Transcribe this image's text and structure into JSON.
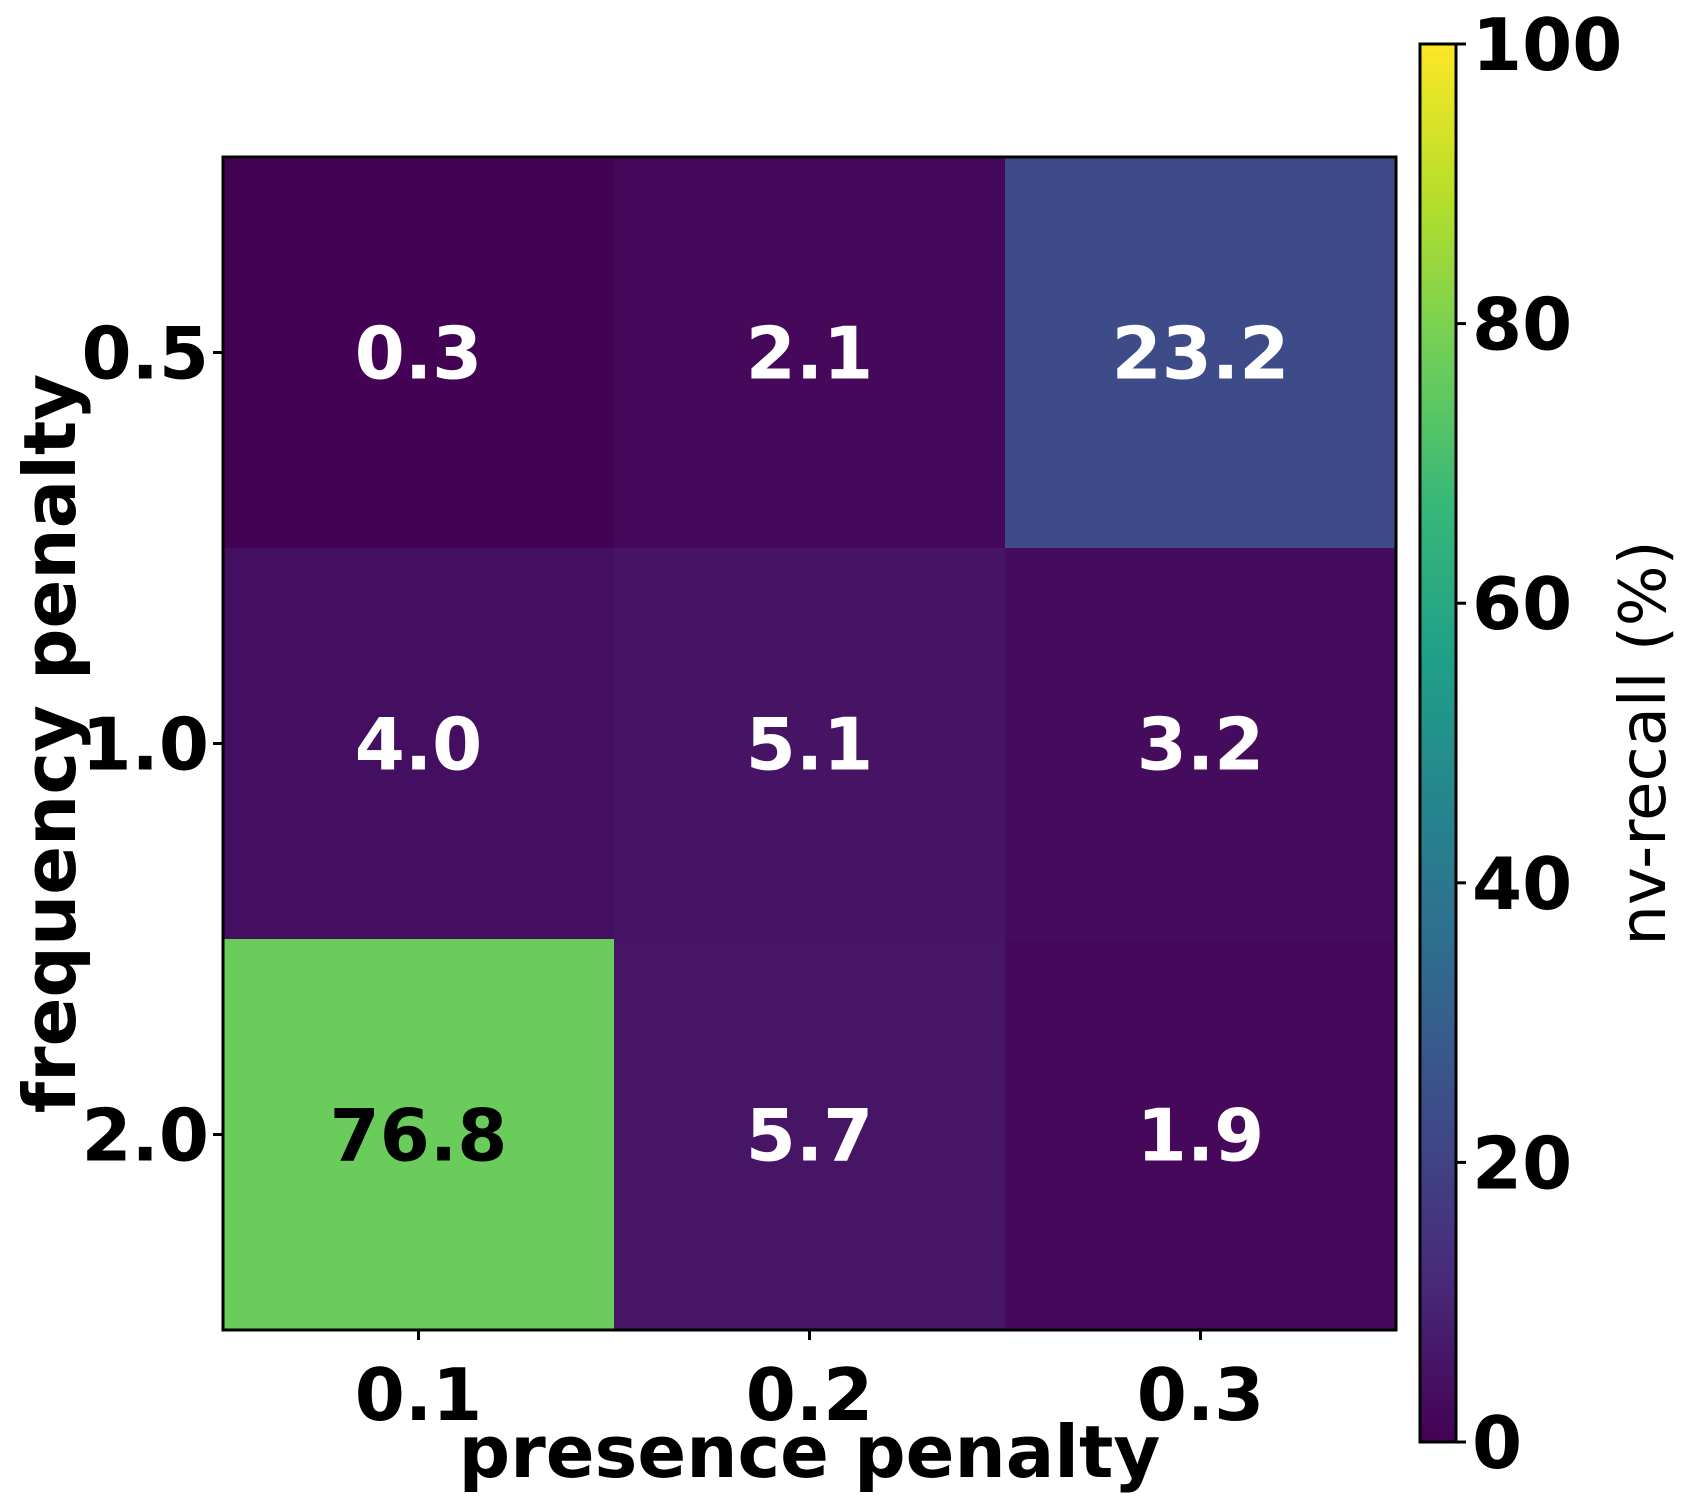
{
  "chart_data": {
    "type": "heatmap",
    "x_categories": [
      "0.1",
      "0.2",
      "0.3"
    ],
    "y_categories": [
      "0.5",
      "1.0",
      "2.0"
    ],
    "values": [
      [
        0.3,
        2.1,
        23.2
      ],
      [
        4.0,
        5.1,
        3.2
      ],
      [
        76.8,
        5.7,
        1.9
      ]
    ],
    "cell_labels": [
      [
        "0.3",
        "2.1",
        "23.2"
      ],
      [
        "4.0",
        "5.1",
        "3.2"
      ],
      [
        "76.8",
        "5.7",
        "1.9"
      ]
    ],
    "xlabel": "presence penalty",
    "ylabel": "frequency penalty",
    "colorbar": {
      "label": "nv-recall (%)",
      "range": [
        0,
        100
      ],
      "ticks": [
        0,
        20,
        40,
        60,
        80,
        100
      ],
      "tick_labels": [
        "0",
        "20",
        "40",
        "60",
        "80",
        "100"
      ],
      "colormap": "viridis",
      "colormap_stops": [
        "#440154",
        "#482878",
        "#3e4989",
        "#31688e",
        "#26828e",
        "#1f9e89",
        "#35b779",
        "#6ece58",
        "#b5de2b",
        "#fde725"
      ]
    },
    "label_colors": {
      "light": "#ffffff",
      "dark": "#000000"
    }
  }
}
